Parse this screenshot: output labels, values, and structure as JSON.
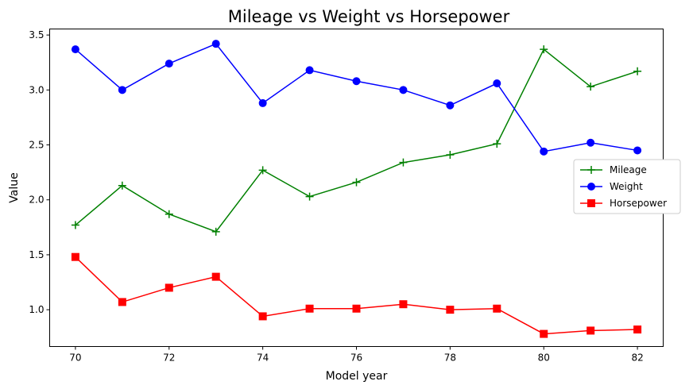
{
  "chart_data": {
    "type": "line",
    "title": "Mileage vs Weight vs Horsepower",
    "xlabel": "Model year",
    "ylabel": "Value",
    "x": [
      70,
      71,
      72,
      73,
      74,
      75,
      76,
      77,
      78,
      79,
      80,
      81,
      82
    ],
    "xlim": [
      69.45,
      82.55
    ],
    "ylim": [
      0.665,
      3.555
    ],
    "xticks": [
      "70",
      "72",
      "74",
      "76",
      "78",
      "80",
      "82"
    ],
    "yticks": [
      "1.0",
      "1.5",
      "2.0",
      "2.5",
      "3.0",
      "3.5"
    ],
    "grid": false,
    "legend_position": "center-right",
    "series": [
      {
        "name": "Mileage",
        "color": "#008000",
        "marker": "plus",
        "values": [
          1.77,
          2.13,
          1.87,
          1.71,
          2.27,
          2.03,
          2.16,
          2.34,
          2.41,
          2.51,
          3.37,
          3.03,
          3.17
        ]
      },
      {
        "name": "Weight",
        "color": "#0000ff",
        "marker": "circle",
        "values": [
          3.37,
          3.0,
          3.24,
          3.42,
          2.88,
          3.18,
          3.08,
          3.0,
          2.86,
          3.06,
          2.44,
          2.52,
          2.45
        ]
      },
      {
        "name": "Horsepower",
        "color": "#ff0000",
        "marker": "square",
        "values": [
          1.48,
          1.07,
          1.2,
          1.3,
          0.94,
          1.01,
          1.01,
          1.05,
          1.0,
          1.01,
          0.78,
          0.81,
          0.82
        ]
      }
    ]
  }
}
